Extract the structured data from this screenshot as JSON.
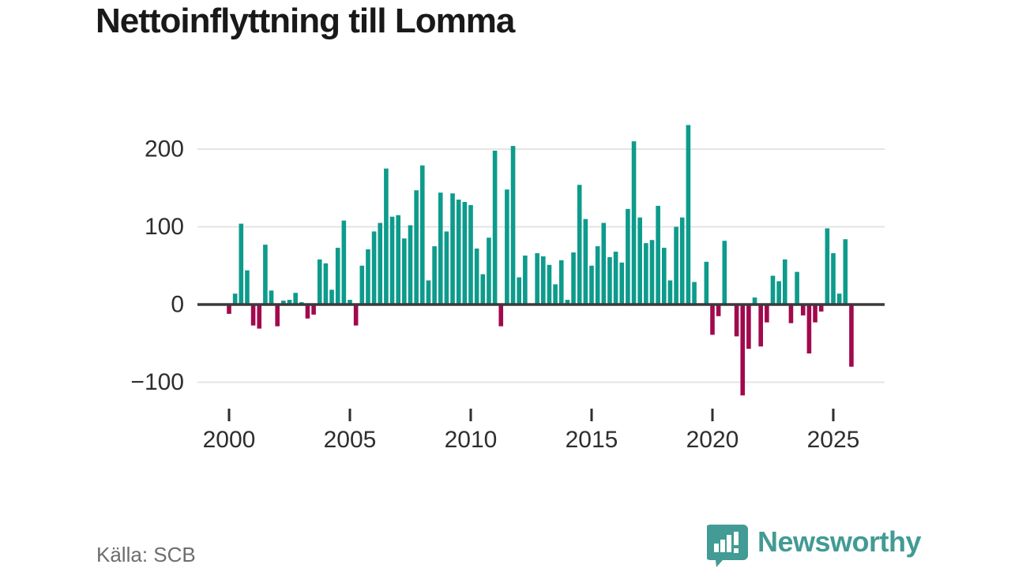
{
  "title": "Nettoinflyttning till Lomma",
  "source": {
    "text": "Källa: SCB"
  },
  "logo": {
    "text": "Newsworthy",
    "icon": "bar-chart-speech-bubble"
  },
  "colors": {
    "positive_bar": "#0d9b8c",
    "negative_bar": "#a1094e",
    "gridline": "#e4e4e4",
    "zero_axis": "#3a3a3a",
    "axis_label": "#2e2e2e",
    "title_text": "#191919",
    "source_text": "#6d6d6d",
    "logo_teal": "#429b94",
    "background": "#ffffff"
  },
  "chart_data": {
    "type": "bar",
    "title": "Nettoinflyttning till Lomma",
    "xlabel": "",
    "ylabel": "",
    "frequency": "quarterly",
    "x_range": [
      "2000Q1",
      "2025Q4"
    ],
    "ylim": [
      -125,
      245
    ],
    "grid": "horizontal",
    "legend": "none",
    "y_ticks": [
      {
        "v": 200,
        "label": "200"
      },
      {
        "v": 100,
        "label": "100"
      },
      {
        "v": 0,
        "label": "0"
      },
      {
        "v": -100,
        "label": "−100"
      }
    ],
    "x_tick_years": [
      2000,
      2005,
      2010,
      2015,
      2020,
      2025
    ],
    "quarters": [
      "2000Q1",
      "2000Q2",
      "2000Q3",
      "2000Q4",
      "2001Q1",
      "2001Q2",
      "2001Q3",
      "2001Q4",
      "2002Q1",
      "2002Q2",
      "2002Q3",
      "2002Q4",
      "2003Q1",
      "2003Q2",
      "2003Q3",
      "2003Q4",
      "2004Q1",
      "2004Q2",
      "2004Q3",
      "2004Q4",
      "2005Q1",
      "2005Q2",
      "2005Q3",
      "2005Q4",
      "2006Q1",
      "2006Q2",
      "2006Q3",
      "2006Q4",
      "2007Q1",
      "2007Q2",
      "2007Q3",
      "2007Q4",
      "2008Q1",
      "2008Q2",
      "2008Q3",
      "2008Q4",
      "2009Q1",
      "2009Q2",
      "2009Q3",
      "2009Q4",
      "2010Q1",
      "2010Q2",
      "2010Q3",
      "2010Q4",
      "2011Q1",
      "2011Q2",
      "2011Q3",
      "2011Q4",
      "2012Q1",
      "2012Q2",
      "2012Q3",
      "2012Q4",
      "2013Q1",
      "2013Q2",
      "2013Q3",
      "2013Q4",
      "2014Q1",
      "2014Q2",
      "2014Q3",
      "2014Q4",
      "2015Q1",
      "2015Q2",
      "2015Q3",
      "2015Q4",
      "2016Q1",
      "2016Q2",
      "2016Q3",
      "2016Q4",
      "2017Q1",
      "2017Q2",
      "2017Q3",
      "2017Q4",
      "2018Q1",
      "2018Q2",
      "2018Q3",
      "2018Q4",
      "2019Q1",
      "2019Q2",
      "2019Q3",
      "2019Q4",
      "2020Q1",
      "2020Q2",
      "2020Q3",
      "2020Q4",
      "2021Q1",
      "2021Q2",
      "2021Q3",
      "2021Q4",
      "2022Q1",
      "2022Q2",
      "2022Q3",
      "2022Q4",
      "2023Q1",
      "2023Q2",
      "2023Q3",
      "2023Q4",
      "2024Q1",
      "2024Q2",
      "2024Q3",
      "2024Q4",
      "2025Q1",
      "2025Q2",
      "2025Q3",
      "2025Q4"
    ],
    "values": [
      -12,
      14,
      104,
      44,
      -27,
      -31,
      77,
      18,
      -28,
      5,
      6,
      15,
      3,
      -18,
      -13,
      58,
      53,
      19,
      73,
      108,
      6,
      -27,
      50,
      71,
      94,
      105,
      175,
      113,
      115,
      85,
      102,
      147,
      179,
      31,
      75,
      144,
      94,
      143,
      135,
      132,
      128,
      72,
      39,
      86,
      198,
      -28,
      148,
      204,
      35,
      63,
      0,
      66,
      62,
      51,
      26,
      57,
      6,
      67,
      154,
      110,
      50,
      75,
      105,
      61,
      68,
      54,
      123,
      210,
      112,
      79,
      83,
      127,
      73,
      31,
      100,
      112,
      231,
      29,
      0,
      55,
      -39,
      -15,
      82,
      0,
      -41,
      -117,
      -57,
      9,
      -54,
      -23,
      37,
      30,
      58,
      -24,
      42,
      -14,
      -63,
      -23,
      -9,
      98,
      66,
      14,
      84,
      -80
    ]
  }
}
